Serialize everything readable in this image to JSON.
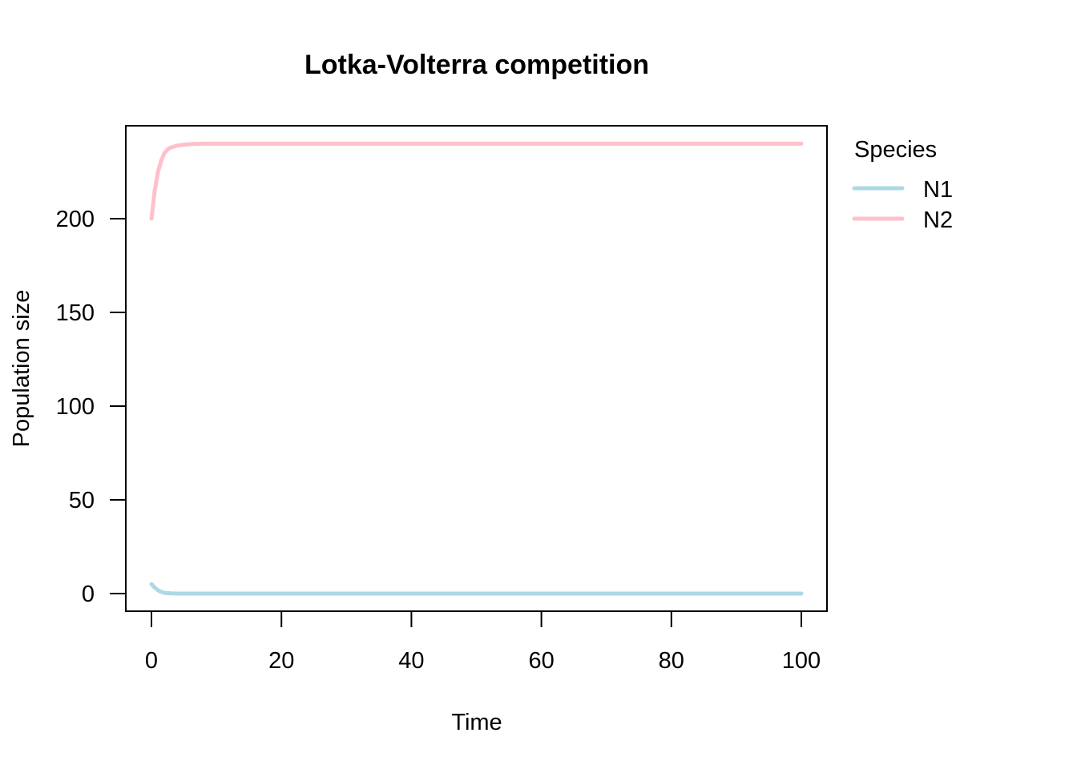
{
  "chart_data": {
    "type": "line",
    "title": "Lotka-Volterra competition",
    "xlabel": "Time",
    "ylabel": "Population size",
    "xlim": [
      0,
      100
    ],
    "ylim": [
      0,
      240
    ],
    "x_ticks": [
      "0",
      "20",
      "40",
      "60",
      "80",
      "100"
    ],
    "y_ticks": [
      "0",
      "50",
      "100",
      "150",
      "200"
    ],
    "grid": false,
    "legend": {
      "title": "Species",
      "position": "right"
    },
    "series": [
      {
        "name": "N1",
        "color": "#add8e6",
        "x": [
          0,
          0.5,
          1,
          1.5,
          2,
          3,
          4,
          5,
          10,
          20,
          40,
          60,
          80,
          100
        ],
        "y": [
          5,
          3.2,
          1.8,
          0.9,
          0.4,
          0.1,
          0,
          0,
          0,
          0,
          0,
          0,
          0,
          0
        ]
      },
      {
        "name": "N2",
        "color": "#ffc0cb",
        "x": [
          0,
          0.5,
          1,
          1.5,
          2,
          2.5,
          3,
          4,
          5,
          6,
          8,
          10,
          20,
          40,
          60,
          80,
          100
        ],
        "y": [
          200,
          215,
          225,
          231,
          235,
          237,
          238,
          239,
          239.5,
          239.8,
          240,
          240,
          240,
          240,
          240,
          240,
          240
        ]
      }
    ]
  }
}
